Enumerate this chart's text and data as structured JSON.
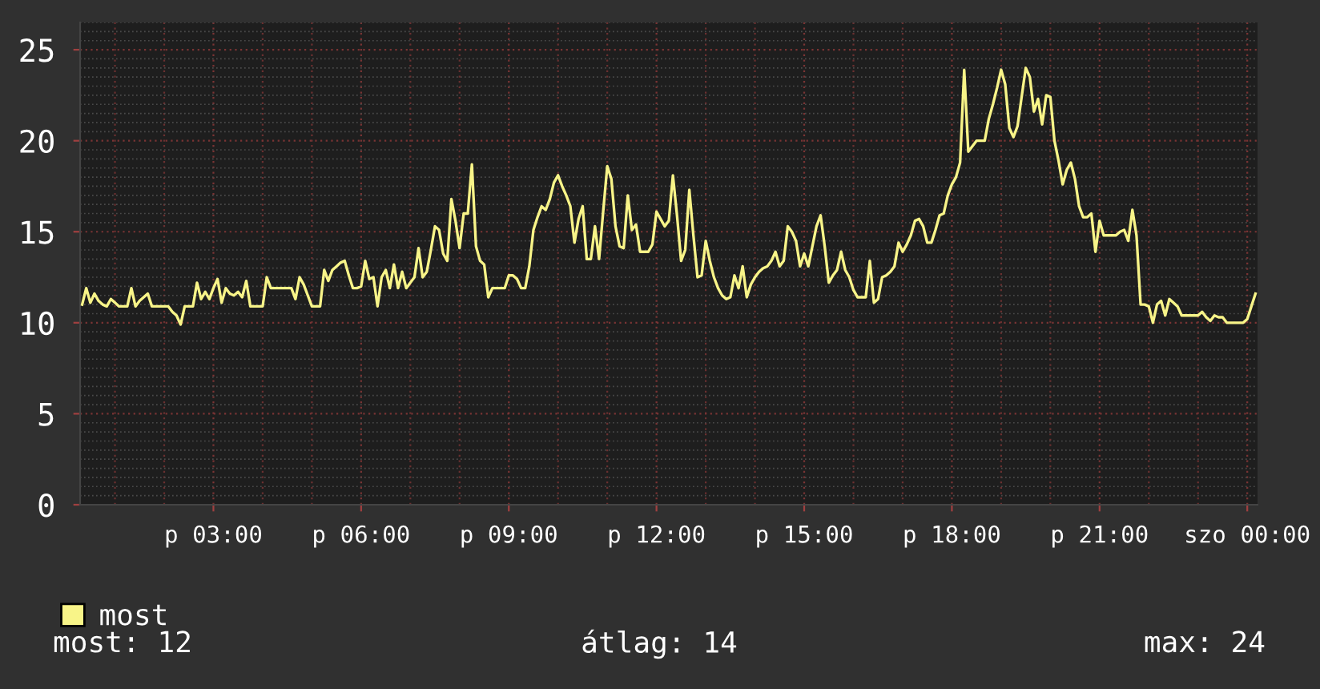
{
  "chart_data": {
    "type": "line",
    "categories": [
      null,
      null,
      null,
      null,
      null,
      null,
      null,
      null,
      null,
      null,
      null,
      null,
      null,
      null,
      null,
      null,
      null,
      null,
      null,
      null,
      null,
      null,
      null,
      null,
      null,
      null,
      null,
      null,
      null,
      null,
      null,
      null,
      "p 03:00",
      null,
      null,
      null,
      null,
      null,
      null,
      null,
      null,
      null,
      null,
      null,
      null,
      null,
      null,
      null,
      null,
      null,
      null,
      null,
      null,
      null,
      null,
      null,
      null,
      null,
      null,
      null,
      null,
      null,
      null,
      null,
      null,
      null,
      null,
      null,
      "p 06:00",
      null,
      null,
      null,
      null,
      null,
      null,
      null,
      null,
      null,
      null,
      null,
      null,
      null,
      null,
      null,
      null,
      null,
      null,
      null,
      null,
      null,
      null,
      null,
      null,
      null,
      null,
      null,
      null,
      null,
      null,
      null,
      null,
      null,
      null,
      null,
      "p 09:00",
      null,
      null,
      null,
      null,
      null,
      null,
      null,
      null,
      null,
      null,
      null,
      null,
      null,
      null,
      null,
      null,
      null,
      null,
      null,
      null,
      null,
      null,
      null,
      null,
      null,
      null,
      null,
      null,
      null,
      null,
      null,
      null,
      null,
      null,
      null,
      "p 12:00",
      null,
      null,
      null,
      null,
      null,
      null,
      null,
      null,
      null,
      null,
      null,
      null,
      null,
      null,
      null,
      null,
      null,
      null,
      null,
      null,
      null,
      null,
      null,
      null,
      null,
      null,
      null,
      null,
      null,
      null,
      null,
      null,
      null,
      null,
      null,
      "p 15:00",
      null,
      null,
      null,
      null,
      null,
      null,
      null,
      null,
      null,
      null,
      null,
      null,
      null,
      null,
      null,
      null,
      null,
      null,
      null,
      null,
      null,
      null,
      null,
      null,
      null,
      null,
      null,
      null,
      null,
      null,
      null,
      null,
      null,
      null,
      null,
      "p 18:00",
      null,
      null,
      null,
      null,
      null,
      null,
      null,
      null,
      null,
      null,
      null,
      null,
      null,
      null,
      null,
      null,
      null,
      null,
      null,
      null,
      null,
      null,
      null,
      null,
      null,
      null,
      null,
      null,
      null,
      null,
      null,
      null,
      null,
      null,
      null,
      "p 21:00",
      null,
      null,
      null,
      null,
      null,
      null,
      null,
      null,
      null,
      null,
      null,
      null,
      null,
      null,
      null,
      null,
      null,
      null,
      null,
      null,
      null,
      null,
      null,
      null,
      null,
      null,
      null,
      null,
      null,
      null,
      null,
      null,
      null,
      null,
      null,
      "szo 00:00",
      null,
      null
    ],
    "series": [
      {
        "name": "most",
        "color": "#f8f488",
        "values": [
          11.0,
          11.9,
          11.1,
          11.6,
          11.2,
          11.0,
          10.9,
          11.3,
          11.1,
          10.9,
          10.9,
          10.9,
          11.9,
          10.9,
          11.2,
          11.4,
          11.6,
          10.9,
          10.9,
          10.9,
          10.9,
          10.9,
          10.6,
          10.4,
          9.9,
          10.9,
          10.9,
          10.9,
          12.2,
          11.3,
          11.7,
          11.3,
          11.9,
          12.4,
          11.1,
          11.9,
          11.6,
          11.5,
          11.7,
          11.4,
          12.3,
          10.9,
          10.9,
          10.9,
          10.9,
          12.5,
          11.9,
          11.9,
          11.9,
          11.9,
          11.9,
          11.9,
          11.3,
          12.5,
          12.1,
          11.5,
          10.9,
          10.9,
          10.9,
          12.9,
          12.3,
          12.9,
          13.1,
          13.3,
          13.4,
          12.6,
          11.9,
          11.9,
          12.0,
          13.4,
          12.4,
          12.5,
          10.9,
          12.5,
          12.9,
          11.9,
          13.2,
          11.9,
          12.8,
          11.9,
          12.2,
          12.5,
          14.1,
          12.5,
          12.8,
          14.0,
          15.3,
          15.1,
          13.8,
          13.4,
          16.8,
          15.6,
          14.1,
          16.0,
          16.0,
          18.7,
          14.2,
          13.4,
          13.2,
          11.4,
          11.9,
          11.9,
          11.9,
          11.9,
          12.6,
          12.6,
          12.4,
          11.9,
          11.9,
          13.1,
          15.1,
          15.8,
          16.4,
          16.2,
          16.8,
          17.7,
          18.1,
          17.5,
          17.0,
          16.4,
          14.4,
          15.7,
          16.4,
          13.5,
          13.5,
          15.3,
          13.5,
          16.1,
          18.6,
          17.9,
          15.3,
          14.2,
          14.1,
          17.0,
          15.1,
          15.4,
          13.9,
          13.9,
          13.9,
          14.3,
          16.1,
          15.7,
          15.3,
          15.6,
          18.1,
          15.9,
          13.4,
          14.0,
          17.3,
          14.8,
          12.5,
          12.6,
          14.5,
          13.4,
          12.5,
          11.9,
          11.5,
          11.3,
          11.4,
          12.6,
          11.9,
          13.1,
          11.4,
          12.1,
          12.5,
          12.8,
          13.0,
          13.1,
          13.4,
          13.9,
          13.1,
          13.4,
          15.3,
          15.0,
          14.5,
          13.1,
          13.8,
          13.1,
          14.2,
          15.3,
          15.9,
          14.2,
          12.2,
          12.6,
          12.9,
          13.9,
          12.9,
          12.5,
          11.8,
          11.4,
          11.4,
          11.4,
          13.4,
          11.1,
          11.3,
          12.5,
          12.6,
          12.8,
          13.1,
          14.4,
          13.9,
          14.3,
          14.8,
          15.6,
          15.7,
          15.3,
          14.4,
          14.4,
          15.1,
          15.9,
          16.0,
          17.0,
          17.6,
          18.0,
          18.8,
          23.9,
          19.4,
          19.7,
          20.0,
          20.0,
          20.0,
          21.2,
          22.0,
          22.9,
          23.9,
          23.1,
          20.7,
          20.2,
          20.8,
          22.4,
          24.0,
          23.5,
          21.6,
          22.3,
          20.9,
          22.5,
          22.4,
          20.0,
          18.9,
          17.6,
          18.4,
          18.8,
          17.9,
          16.4,
          15.8,
          15.8,
          16.0,
          13.9,
          15.6,
          14.8,
          14.8,
          14.8,
          14.8,
          15.0,
          15.1,
          14.5,
          16.2,
          14.8,
          11.0,
          11.0,
          10.9,
          10.0,
          11.0,
          11.2,
          10.4,
          11.3,
          11.1,
          10.9,
          10.4,
          10.4,
          10.4,
          10.4,
          10.4,
          10.6,
          10.3,
          10.1,
          10.4,
          10.3,
          10.3,
          10.0,
          10.0,
          10.0,
          10.0,
          10.0,
          10.2,
          10.9,
          11.6
        ]
      }
    ],
    "ylim": [
      0,
      26.5
    ],
    "yticks": [
      0,
      5,
      10,
      15,
      20,
      25
    ],
    "grid": true,
    "legend": "bottom left",
    "marker": "none",
    "line_style": "solid",
    "annotations": [
      "most: 12",
      "átlag: 14",
      "max: 24"
    ]
  }
}
